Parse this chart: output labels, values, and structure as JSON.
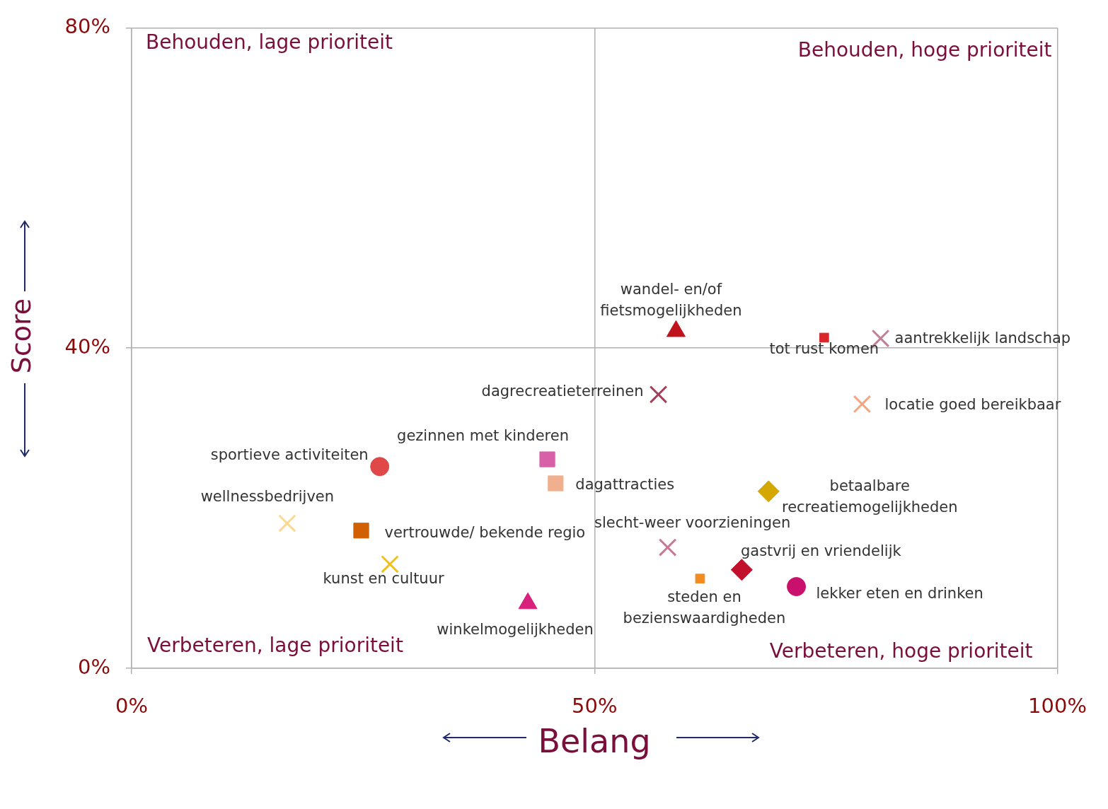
{
  "chart_data": {
    "type": "scatter",
    "xlabel": "Belang",
    "ylabel": "Score",
    "xlim": [
      0,
      100
    ],
    "ylim": [
      0,
      80
    ],
    "xticks": [
      {
        "value": 0,
        "label": "0%"
      },
      {
        "value": 50,
        "label": "50%"
      },
      {
        "value": 100,
        "label": "100%"
      }
    ],
    "yticks": [
      {
        "value": 0,
        "label": "0%"
      },
      {
        "value": 40,
        "label": "40%"
      },
      {
        "value": 80,
        "label": "80%"
      }
    ],
    "grid": true,
    "annotations": [
      "Behouden, lage prioriteit",
      "Behouden, hoge prioriteit",
      "Verbeteren, lage prioriteit",
      "Verbeteren, hoge prioriteit"
    ],
    "series": [
      {
        "name": "wandel- en/of fietsmogelijkheden",
        "color": "#c0141c",
        "marker": "triangle",
        "x": [
          58.8
        ],
        "values": [
          42.1
        ]
      },
      {
        "name": "tot rust komen",
        "color": "#d9262b",
        "marker": "square",
        "x": [
          74.8
        ],
        "values": [
          41.3
        ]
      },
      {
        "name": "aantrekkelijk landschap",
        "color": "#c08098",
        "marker": "cross",
        "x": [
          80.9
        ],
        "values": [
          41.2
        ]
      },
      {
        "name": "dagrecreatieterreinen",
        "color": "#a0405a",
        "marker": "cross",
        "x": [
          56.9
        ],
        "values": [
          34.2
        ]
      },
      {
        "name": "locatie goed bereikbaar",
        "color": "#f4a582",
        "marker": "cross",
        "x": [
          78.9
        ],
        "values": [
          33.0
        ]
      },
      {
        "name": "gezinnen met kinderen",
        "color": "#d860a8",
        "marker": "square",
        "x": [
          44.9
        ],
        "values": [
          26.1
        ]
      },
      {
        "name": "sportieve activiteiten",
        "color": "#e04848",
        "marker": "circle",
        "x": [
          26.8
        ],
        "values": [
          25.2
        ]
      },
      {
        "name": "dagattracties",
        "color": "#f0b090",
        "marker": "square",
        "x": [
          45.8
        ],
        "values": [
          23.1
        ]
      },
      {
        "name": "betaalbare recreatiemogelijkheden",
        "color": "#d4a800",
        "marker": "diamond",
        "x": [
          68.8
        ],
        "values": [
          22.1
        ]
      },
      {
        "name": "wellnessbedrijven",
        "color": "#fcd890",
        "marker": "cross",
        "x": [
          16.8
        ],
        "values": [
          18.1
        ]
      },
      {
        "name": "vertrouwde/ bekende regio",
        "color": "#d06000",
        "marker": "square",
        "x": [
          24.8
        ],
        "values": [
          17.2
        ]
      },
      {
        "name": "slecht-weer voorzieningen",
        "color": "#c87890",
        "marker": "cross",
        "x": [
          57.9
        ],
        "values": [
          15.1
        ]
      },
      {
        "name": "kunst en cultuur",
        "color": "#f0c020",
        "marker": "cross",
        "x": [
          27.9
        ],
        "values": [
          13.0
        ]
      },
      {
        "name": "gastvrij en vriendelijk",
        "color": "#c0102c",
        "marker": "diamond",
        "x": [
          65.9
        ],
        "values": [
          12.3
        ]
      },
      {
        "name": "steden en bezienswaardigheden",
        "color": "#f08c20",
        "marker": "square",
        "x": [
          61.4
        ],
        "values": [
          11.2
        ]
      },
      {
        "name": "lekker eten en drinken",
        "color": "#c8106c",
        "marker": "circle",
        "x": [
          71.8
        ],
        "values": [
          10.2
        ]
      },
      {
        "name": "winkelmogelijkheden",
        "color": "#d8207c",
        "marker": "triangle",
        "x": [
          42.8
        ],
        "values": [
          8.1
        ]
      }
    ]
  }
}
